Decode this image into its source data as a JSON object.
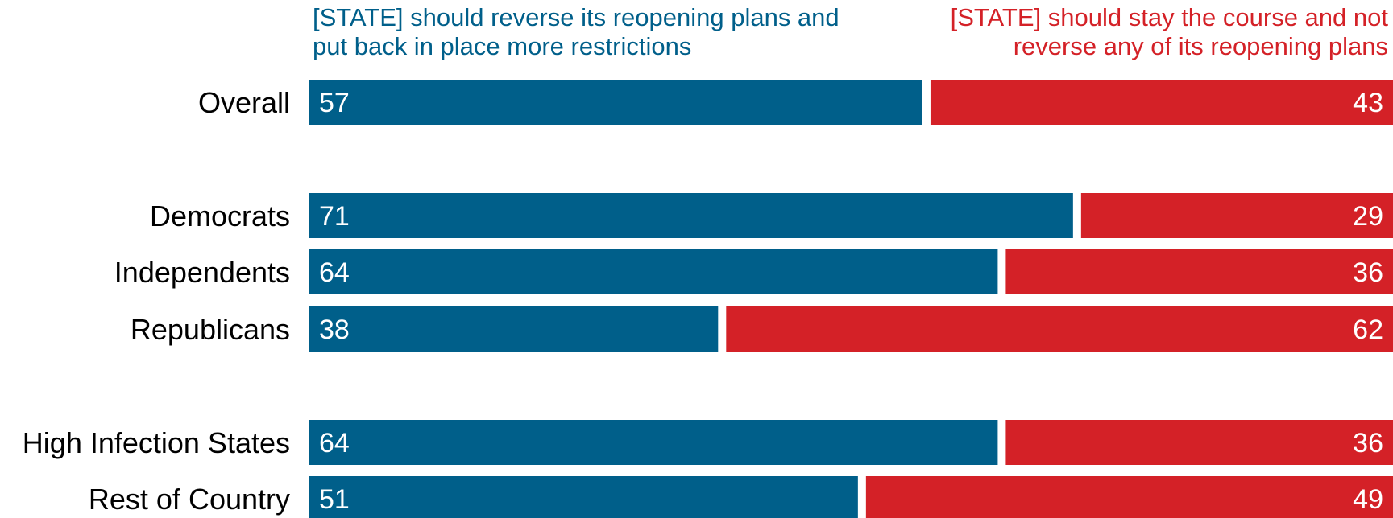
{
  "colors": {
    "left": "#005F8A",
    "right": "#D42127"
  },
  "legend": {
    "left_line1": "[STATE] should reverse its reopening plans and",
    "left_line2": "put back in place more restrictions",
    "right_line1": "[STATE] should stay the course and not",
    "right_line2": "reverse any of its reopening plans"
  },
  "chart_data": {
    "type": "bar",
    "orientation": "horizontal",
    "stacked": true,
    "unit": "percent",
    "categories": [
      "Overall",
      "Democrats",
      "Independents",
      "Republicans",
      "High Infection States",
      "Rest of Country"
    ],
    "groups": [
      [
        0
      ],
      [
        1,
        2,
        3
      ],
      [
        4,
        5
      ]
    ],
    "series": [
      {
        "name": "[STATE] should reverse its reopening plans and put back in place more restrictions",
        "color": "#005F8A",
        "values": [
          57,
          71,
          64,
          38,
          64,
          51
        ]
      },
      {
        "name": "[STATE] should stay the course and not reverse any of its reopening plans",
        "color": "#D42127",
        "values": [
          43,
          29,
          36,
          62,
          36,
          49
        ]
      }
    ],
    "xlim": [
      0,
      100
    ],
    "grid": false,
    "legend_position": "top"
  }
}
